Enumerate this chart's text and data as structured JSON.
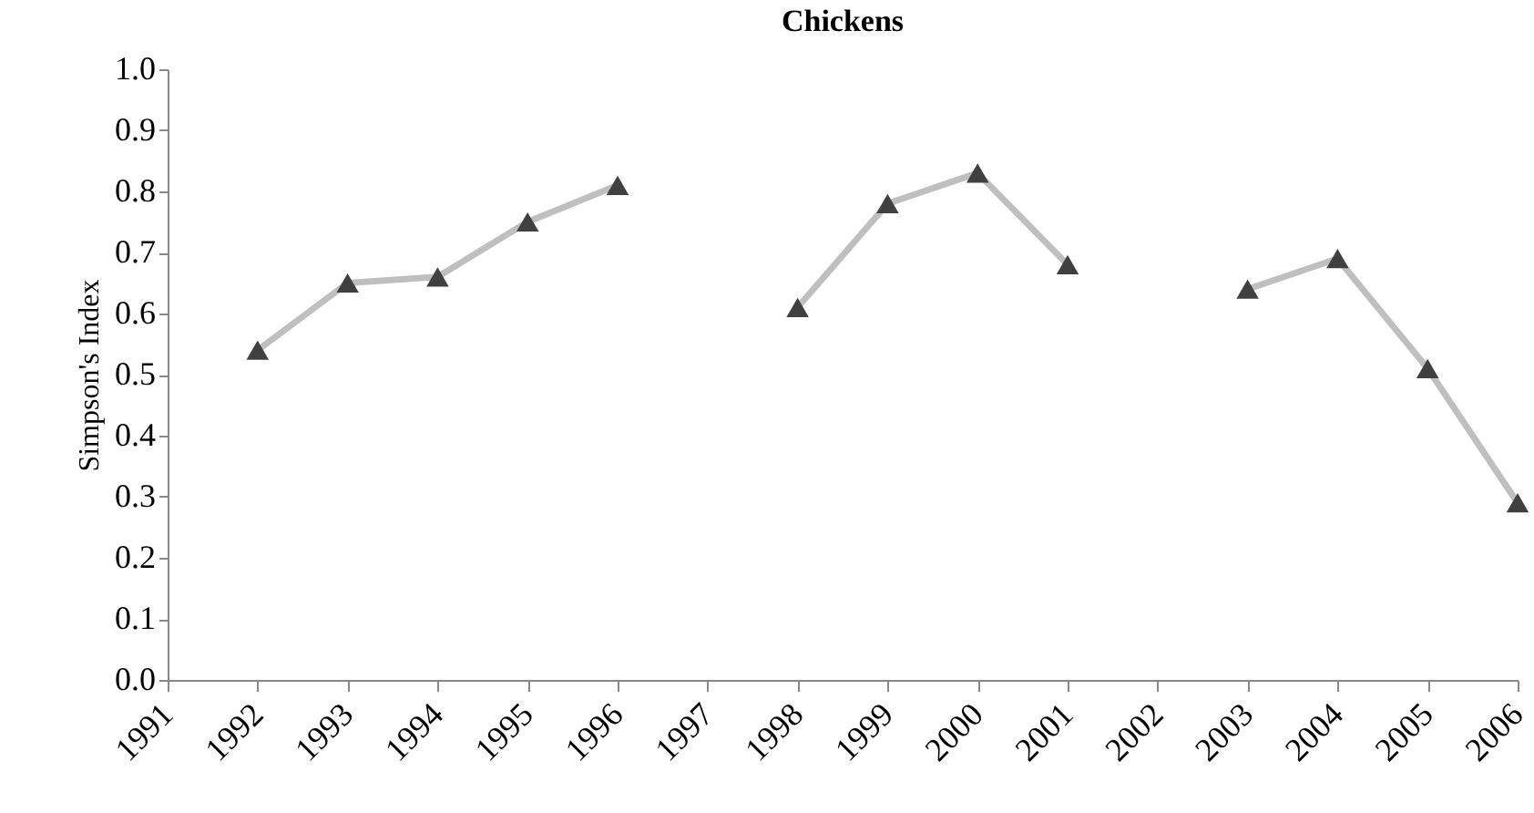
{
  "chart_data": {
    "type": "line",
    "title": "Chickens",
    "ylabel": "Simpson's Index",
    "x": [
      1992,
      1993,
      1994,
      1995,
      1996,
      1997,
      1998,
      1999,
      2000,
      2001,
      2002,
      2003,
      2004,
      2005,
      2006
    ],
    "series": [
      {
        "color": "#bfbfbf",
        "values": [
          0.54,
          0.65,
          0.66,
          0.75,
          0.81,
          null,
          0.61,
          0.78,
          0.83,
          0.68,
          null,
          0.64,
          0.69,
          0.51,
          0.29
        ]
      }
    ],
    "xlim": [
      1991,
      2006
    ],
    "xticks": [
      1991,
      1992,
      1993,
      1994,
      1995,
      1996,
      1997,
      1998,
      1999,
      2000,
      2001,
      2002,
      2003,
      2004,
      2005,
      2006
    ],
    "ylim": [
      0,
      1
    ],
    "yticks": [
      {
        "value": 0,
        "label": "0.0"
      },
      0.1,
      0.2,
      0.3,
      0.4,
      0.5,
      0.6,
      0.7,
      0.8,
      0.9,
      {
        "value": 1,
        "label": "1.0"
      }
    ],
    "grid": false,
    "legend": false,
    "marker": "triangle",
    "line_style": "solid"
  }
}
